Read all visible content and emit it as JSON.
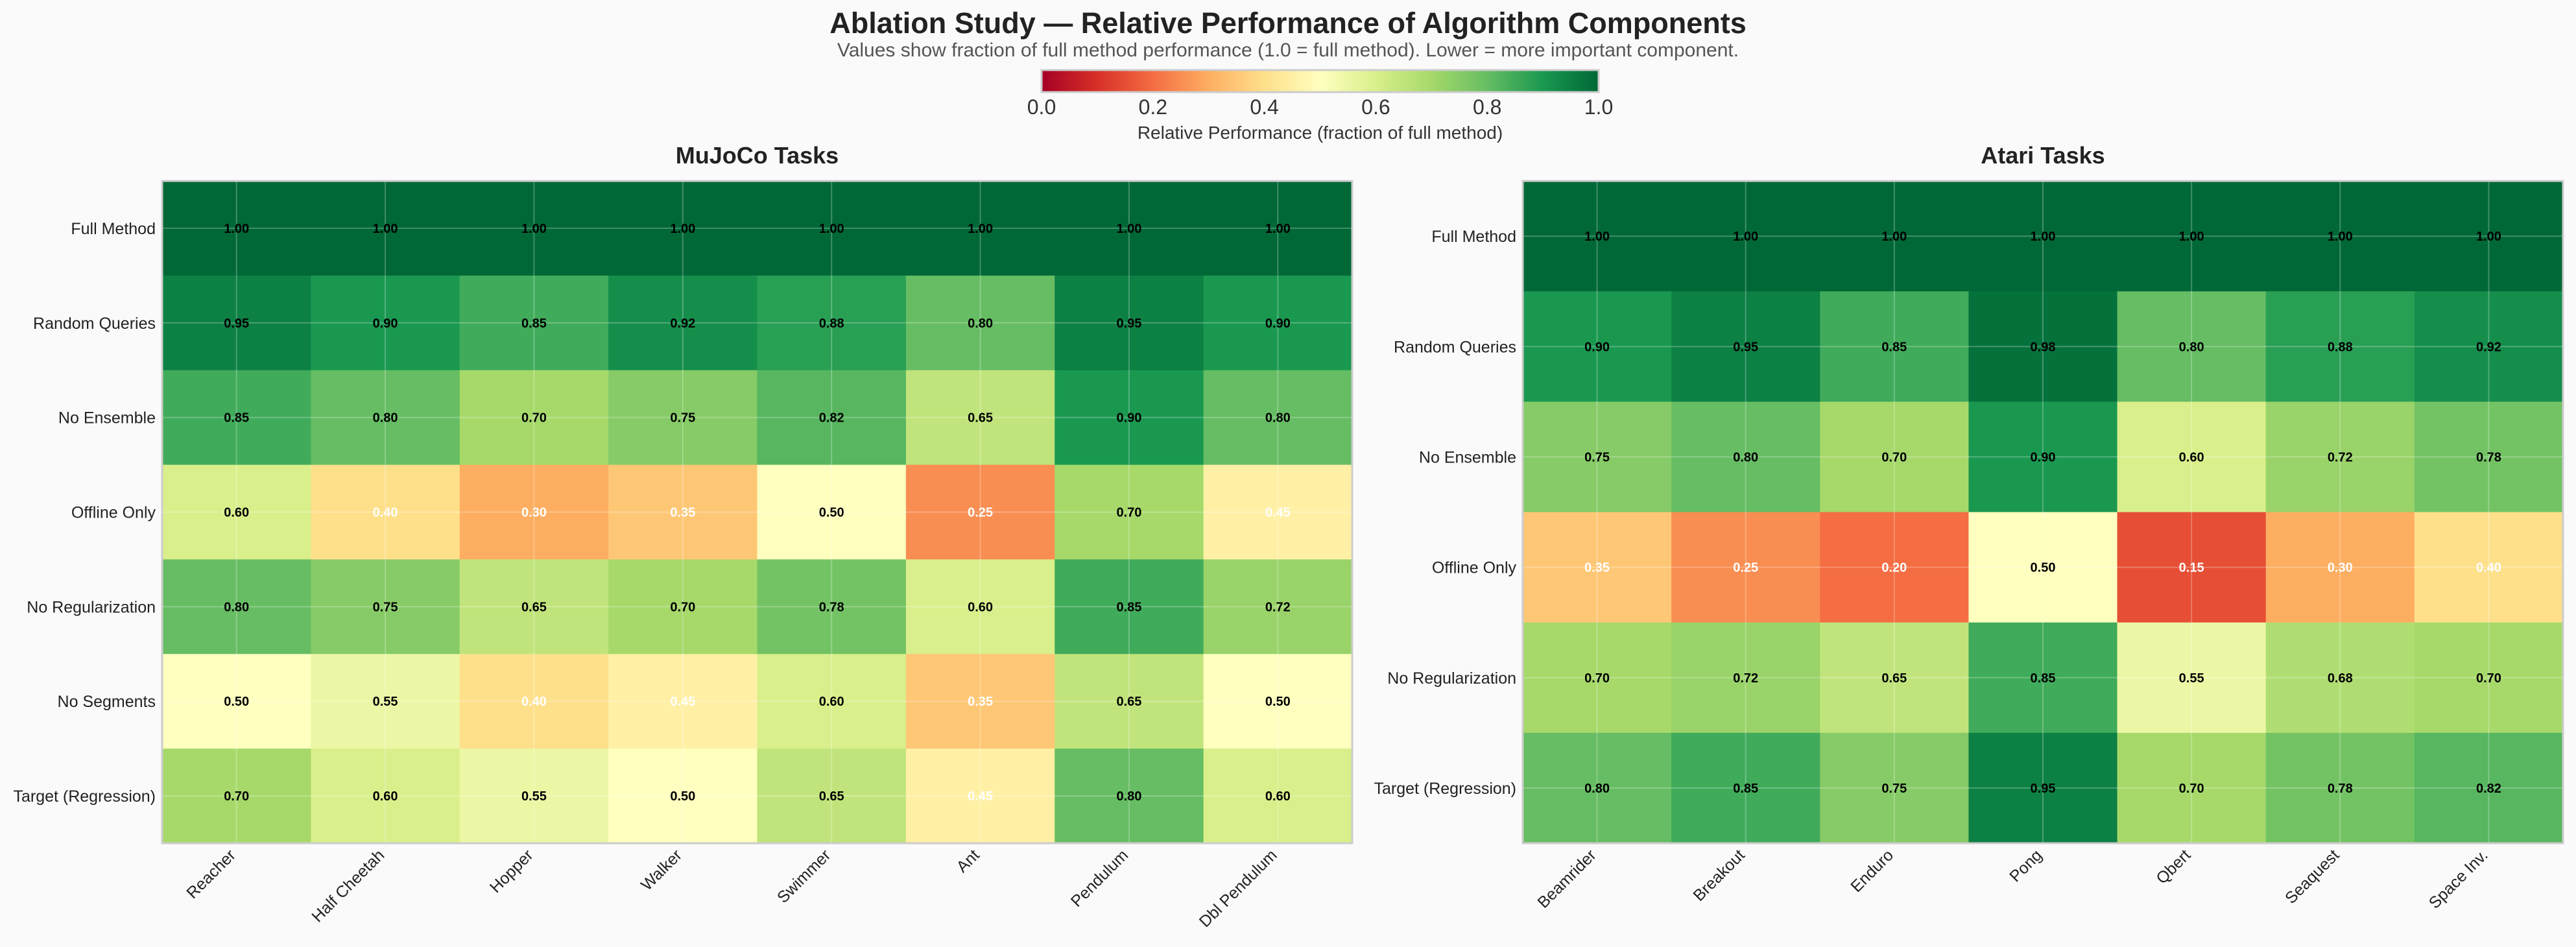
{
  "title": "Ablation Study — Relative Performance of Algorithm Components",
  "subtitle": "Values show fraction of full method performance (1.0 = full method). Lower = more important component.",
  "colorbar": {
    "label": "Relative Performance (fraction of full method)",
    "ticks": [
      "0.0",
      "0.2",
      "0.4",
      "0.6",
      "0.8",
      "1.0"
    ],
    "colormap": "RdYlGn",
    "range": [
      0,
      1
    ],
    "stops": [
      "#a50026",
      "#d73027",
      "#f46d43",
      "#fdae61",
      "#fee08b",
      "#ffffbf",
      "#d9ef8b",
      "#a6d96a",
      "#66bd63",
      "#1a9850",
      "#006837"
    ]
  },
  "chart_data": [
    {
      "type": "heatmap",
      "title": "MuJoCo Tasks",
      "rows": [
        "Full Method",
        "Random Queries",
        "No Ensemble",
        "Offline Only",
        "No Regularization",
        "No Segments",
        "Target (Regression)"
      ],
      "columns": [
        "Reacher",
        "Half Cheetah",
        "Hopper",
        "Walker",
        "Swimmer",
        "Ant",
        "Pendulum",
        "Dbl Pendulum"
      ],
      "values": [
        [
          1.0,
          1.0,
          1.0,
          1.0,
          1.0,
          1.0,
          1.0,
          1.0
        ],
        [
          0.95,
          0.9,
          0.85,
          0.92,
          0.88,
          0.8,
          0.95,
          0.9
        ],
        [
          0.85,
          0.8,
          0.7,
          0.75,
          0.82,
          0.65,
          0.9,
          0.8
        ],
        [
          0.6,
          0.4,
          0.3,
          0.35,
          0.5,
          0.25,
          0.7,
          0.45
        ],
        [
          0.8,
          0.75,
          0.65,
          0.7,
          0.78,
          0.6,
          0.85,
          0.72
        ],
        [
          0.5,
          0.55,
          0.4,
          0.45,
          0.6,
          0.35,
          0.65,
          0.5
        ],
        [
          0.7,
          0.6,
          0.55,
          0.5,
          0.65,
          0.45,
          0.8,
          0.6
        ]
      ],
      "vmin": 0,
      "vmax": 1,
      "grid": true
    },
    {
      "type": "heatmap",
      "title": "Atari Tasks",
      "rows": [
        "Full Method",
        "Random Queries",
        "No Ensemble",
        "Offline Only",
        "No Regularization",
        "Target (Regression)"
      ],
      "columns": [
        "Beamrider",
        "Breakout",
        "Enduro",
        "Pong",
        "Qbert",
        "Seaquest",
        "Space Inv."
      ],
      "values": [
        [
          1.0,
          1.0,
          1.0,
          1.0,
          1.0,
          1.0,
          1.0
        ],
        [
          0.9,
          0.95,
          0.85,
          0.98,
          0.8,
          0.88,
          0.92
        ],
        [
          0.75,
          0.8,
          0.7,
          0.9,
          0.6,
          0.72,
          0.78
        ],
        [
          0.35,
          0.25,
          0.2,
          0.5,
          0.15,
          0.3,
          0.4
        ],
        [
          0.7,
          0.72,
          0.65,
          0.85,
          0.55,
          0.68,
          0.7
        ],
        [
          0.8,
          0.85,
          0.75,
          0.95,
          0.7,
          0.78,
          0.82
        ]
      ],
      "vmin": 0,
      "vmax": 1,
      "grid": true
    }
  ]
}
